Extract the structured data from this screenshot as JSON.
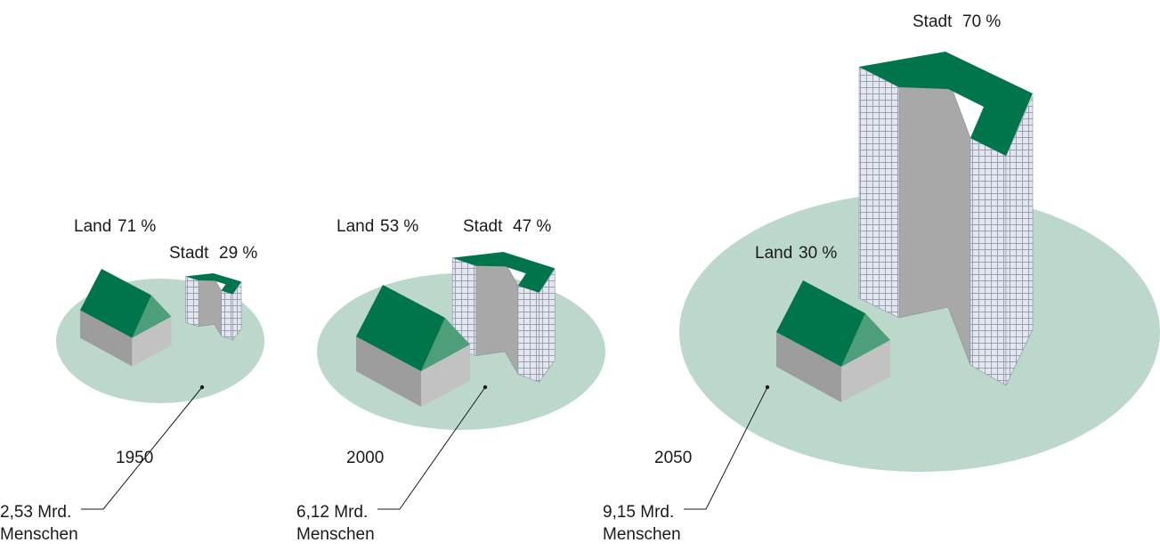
{
  "panels": [
    {
      "land_label": "Land",
      "land_share": "71 %",
      "city_label": "Stadt",
      "city_share": "29 %",
      "year": "1950",
      "population": "2,53 Mrd.",
      "unit": "Menschen"
    },
    {
      "land_label": "Land",
      "land_share": "53 %",
      "city_label": "Stadt",
      "city_share": "47 %",
      "year": "2000",
      "population": "6,12 Mrd.",
      "unit": "Menschen"
    },
    {
      "land_label": "Land",
      "land_share": "30 %",
      "city_label": "Stadt",
      "city_share": "70 %",
      "year": "2050",
      "population": "9,15 Mrd.",
      "unit": "Menschen"
    }
  ]
}
